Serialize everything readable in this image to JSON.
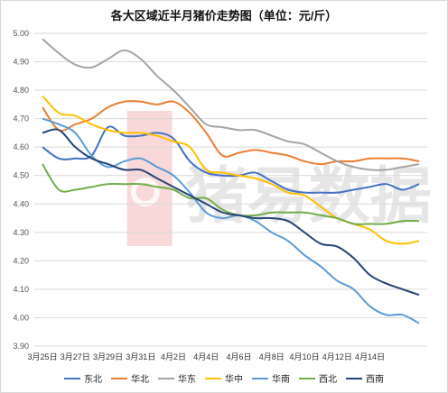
{
  "chart_data": {
    "type": "line",
    "title": "各大区域近半月猪价走势图（单位：元/斤）",
    "xlabel": "",
    "ylabel": "",
    "ylim": [
      3.9,
      5.0
    ],
    "yticks": [
      "3.90",
      "4.00",
      "4.10",
      "4.20",
      "4.30",
      "4.40",
      "4.50",
      "4.60",
      "4.70",
      "4.80",
      "4.90",
      "5.00"
    ],
    "x_tick_labels": [
      "3月25日",
      "3月27日",
      "3月29日",
      "3月31日",
      "4月2日",
      "4月4日",
      "4月6日",
      "4月8日",
      "4月10日",
      "4月12日",
      "4月14日"
    ],
    "legend_position": "bottom",
    "grid": "horizontal",
    "watermark": "猪易数据",
    "series": [
      {
        "name": "东北",
        "color": "#4472c4",
        "values": [
          4.6,
          4.56,
          4.56,
          4.57,
          4.67,
          4.64,
          4.64,
          4.65,
          4.63,
          4.55,
          4.51,
          4.5,
          4.5,
          4.51,
          4.48,
          4.45,
          4.44,
          4.44,
          4.44,
          4.45,
          4.46,
          4.47,
          4.45,
          4.47
        ]
      },
      {
        "name": "华北",
        "color": "#ed7d31",
        "values": [
          4.74,
          4.66,
          4.68,
          4.7,
          4.74,
          4.76,
          4.76,
          4.75,
          4.76,
          4.72,
          4.65,
          4.57,
          4.58,
          4.59,
          4.58,
          4.57,
          4.55,
          4.54,
          4.55,
          4.55,
          4.56,
          4.56,
          4.56,
          4.55
        ]
      },
      {
        "name": "华东",
        "color": "#a5a5a5",
        "values": [
          4.98,
          4.93,
          4.89,
          4.88,
          4.91,
          4.94,
          4.91,
          4.85,
          4.8,
          4.74,
          4.68,
          4.67,
          4.66,
          4.66,
          4.64,
          4.62,
          4.61,
          4.58,
          4.55,
          4.53,
          4.52,
          4.52,
          4.53,
          4.54
        ]
      },
      {
        "name": "华中",
        "color": "#ffc000",
        "values": [
          4.78,
          4.72,
          4.71,
          4.68,
          4.66,
          4.65,
          4.65,
          4.64,
          4.62,
          4.6,
          4.52,
          4.51,
          4.5,
          4.49,
          4.47,
          4.44,
          4.43,
          4.39,
          4.35,
          4.33,
          4.31,
          4.27,
          4.26,
          4.27
        ]
      },
      {
        "name": "华南",
        "color": "#5b9bd5",
        "values": [
          4.7,
          4.68,
          4.65,
          4.57,
          4.53,
          4.55,
          4.56,
          4.53,
          4.5,
          4.44,
          4.37,
          4.35,
          4.36,
          4.34,
          4.3,
          4.27,
          4.22,
          4.18,
          4.13,
          4.1,
          4.04,
          4.01,
          4.01,
          3.98
        ]
      },
      {
        "name": "西北",
        "color": "#70ad47",
        "values": [
          4.54,
          4.45,
          4.45,
          4.46,
          4.47,
          4.47,
          4.47,
          4.46,
          4.45,
          4.42,
          4.42,
          4.38,
          4.36,
          4.36,
          4.37,
          4.37,
          4.37,
          4.36,
          4.35,
          4.33,
          4.33,
          4.33,
          4.34,
          4.34
        ]
      },
      {
        "name": "西南",
        "color": "#264478",
        "values": [
          4.65,
          4.66,
          4.6,
          4.56,
          4.54,
          4.52,
          4.52,
          4.49,
          4.46,
          4.43,
          4.4,
          4.37,
          4.36,
          4.35,
          4.35,
          4.34,
          4.3,
          4.26,
          4.25,
          4.21,
          4.15,
          4.12,
          4.1,
          4.08
        ]
      }
    ]
  }
}
